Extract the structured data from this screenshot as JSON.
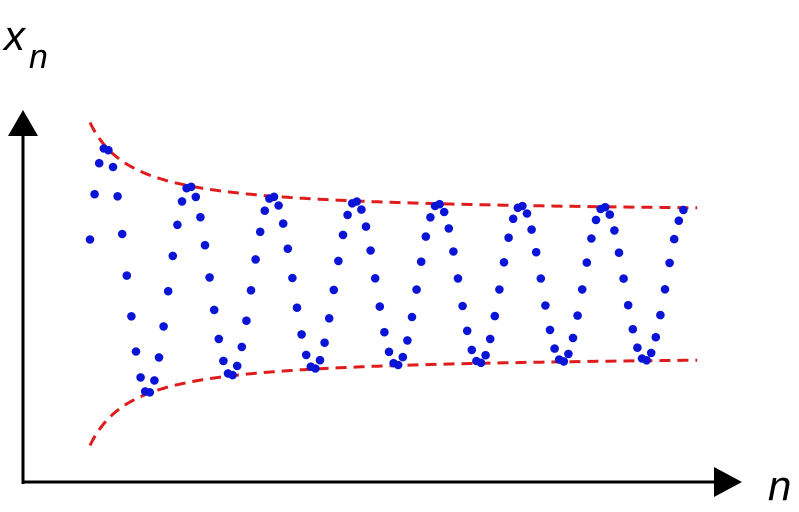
{
  "chart_data": {
    "type": "scatter",
    "title": "",
    "xlabel": "n",
    "ylabel": "x",
    "ylabel_subscript": "n",
    "grid": false,
    "ticks": false,
    "colors": {
      "points": "#0a14d6",
      "envelope": "#e01b1b",
      "axes": "#000000"
    },
    "sequence": {
      "n_count": 130,
      "center": 1.98,
      "amplitude_limit": 0.7,
      "amplitude_decay_coeff": 8.78,
      "amplitude_decay_shift": 8.6,
      "period": 18,
      "first_peak_n": 4.7
    },
    "envelopes": [
      {
        "role": "upper",
        "style": "dashed"
      },
      {
        "role": "lower",
        "style": "dashed"
      }
    ]
  }
}
